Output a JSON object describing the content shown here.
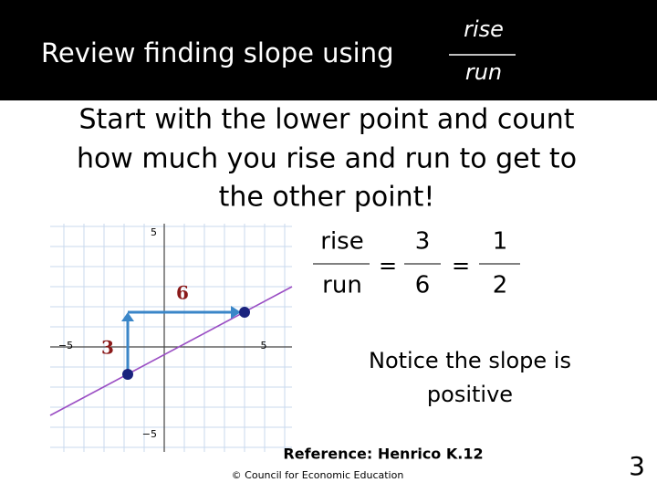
{
  "header": {
    "title": "Review finding slope using",
    "fraction": {
      "numerator": "rise",
      "denominator": "run"
    }
  },
  "body": {
    "lines": [
      "Start with the lower point and count",
      "how much you rise and run to get to",
      "the other point!"
    ]
  },
  "equation": {
    "fractions": [
      {
        "numerator": "rise",
        "denominator": "run"
      },
      {
        "numerator": "3",
        "denominator": "6"
      },
      {
        "numerator": "1",
        "denominator": "2"
      }
    ],
    "equals": "="
  },
  "graph": {
    "y_top_label": "5",
    "x_left_label": "−5",
    "x_right_label": "5",
    "y_bottom_label": "−5",
    "run_label": "6",
    "rise_label": "3"
  },
  "notice": {
    "lines": [
      "Notice the slope is",
      "positive"
    ]
  },
  "footer": {
    "reference": "Reference: Henrico K.12",
    "copyright": "© Council for Economic Education",
    "page_number": "3"
  }
}
